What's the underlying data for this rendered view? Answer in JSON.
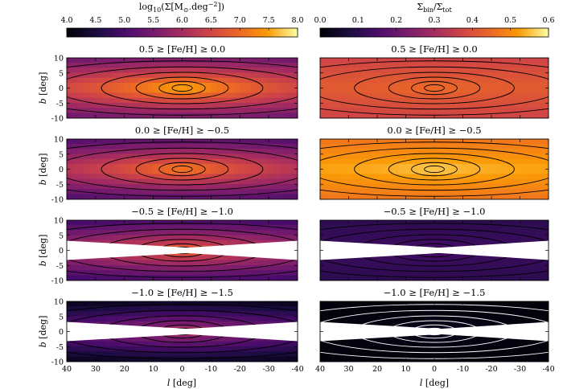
{
  "chart_data": {
    "type": "heatmap",
    "figure": "Surface density maps by metallicity bin",
    "columns": [
      {
        "name": "total_density",
        "colorbar_label_parts": [
          "log",
          "10",
          "(Σ[M",
          "⊙",
          ".deg",
          "−2",
          "])"
        ],
        "colorbar_range": [
          4.0,
          8.0
        ],
        "colorbar_ticks": [
          "4.0",
          "4.5",
          "5.0",
          "5.5",
          "6.0",
          "6.5",
          "7.0",
          "7.5",
          "8.0"
        ],
        "colormap": "inferno",
        "contour_color": "#000000"
      },
      {
        "name": "density_fraction",
        "colorbar_label_parts": [
          "Σ",
          "bin",
          "/Σ",
          "tot"
        ],
        "colorbar_range": [
          0.0,
          0.6
        ],
        "colorbar_ticks": [
          "0.0",
          "0.1",
          "0.2",
          "0.3",
          "0.4",
          "0.5",
          "0.6"
        ],
        "colormap": "inferno",
        "contour_color": "#000000"
      }
    ],
    "rows": [
      {
        "title": "0.5 ≥ [Fe/H] ≥ 0.0",
        "masked_half_width_deg": 0,
        "peak_density": 7.75,
        "falloff": 0.9,
        "fraction_level": 0.42,
        "fraction_contour_color": "#000000"
      },
      {
        "title": "0.0 ≥ [Fe/H] ≥ −0.5",
        "masked_half_width_deg": 0,
        "peak_density": 7.35,
        "falloff": 0.85,
        "fraction_level": 0.53,
        "fraction_contour_color": "#000000"
      },
      {
        "title": "−0.5 ≥ [Fe/H] ≥ −1.0",
        "masked_half_width_deg": 3.2,
        "peak_density": 7.0,
        "falloff": 0.75,
        "fraction_level": 0.12,
        "fraction_contour_color": "#000000"
      },
      {
        "title": "−1.0 ≥ [Fe/H] ≥ −1.5",
        "masked_half_width_deg": 3.2,
        "peak_density": 6.2,
        "falloff": 0.7,
        "fraction_level": 0.01,
        "fraction_contour_color": "#ffffff"
      }
    ],
    "xlabel": "l [deg]",
    "xlabel_parts": [
      "l",
      " [deg]"
    ],
    "ylabel": "b [deg]",
    "ylabel_parts": [
      "b",
      " [deg]"
    ],
    "xlim": [
      40,
      -40
    ],
    "ylim": [
      -10,
      10
    ],
    "x_ticks": [
      "40",
      "30",
      "20",
      "10",
      "0",
      "-10",
      "-20",
      "-30",
      "-40"
    ],
    "x_tick_values": [
      40,
      30,
      20,
      10,
      0,
      -10,
      -20,
      -30,
      -40
    ],
    "y_ticks": [
      "10",
      "5",
      "0",
      "-5",
      "-10"
    ],
    "y_tick_values": [
      10,
      5,
      0,
      -5,
      -10
    ]
  }
}
